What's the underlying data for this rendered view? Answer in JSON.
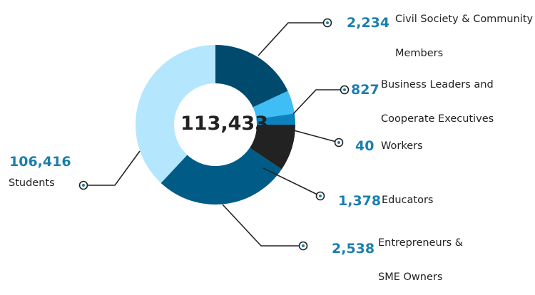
{
  "chart_data": {
    "type": "pie",
    "center_total": "113,433",
    "slices": [
      {
        "key": "civil",
        "label_lines": [
          "Civil Society & Community",
          "Members"
        ],
        "value": 2234,
        "display": "2,234",
        "color": "#004a6e"
      },
      {
        "key": "business",
        "label_lines": [
          "Business Leaders and",
          "Cooperate Executives"
        ],
        "value": 827,
        "display": "827",
        "color": "#3fbdf5"
      },
      {
        "key": "workers",
        "label_lines": [
          "Workers"
        ],
        "value": 40,
        "display": "40",
        "color": "#0b82bd"
      },
      {
        "key": "educators",
        "label_lines": [
          "Educators"
        ],
        "value": 1378,
        "display": "1,378",
        "color": "#222222"
      },
      {
        "key": "entrepreneurs",
        "label_lines": [
          "Entrepreneurs &",
          "SME Owners"
        ],
        "value": 2538,
        "display": "2,538",
        "color": "#005b86"
      },
      {
        "key": "students",
        "label_lines": [
          "Students"
        ],
        "value": 106416,
        "display": "106,416",
        "color": "#b4e6fd"
      }
    ]
  }
}
